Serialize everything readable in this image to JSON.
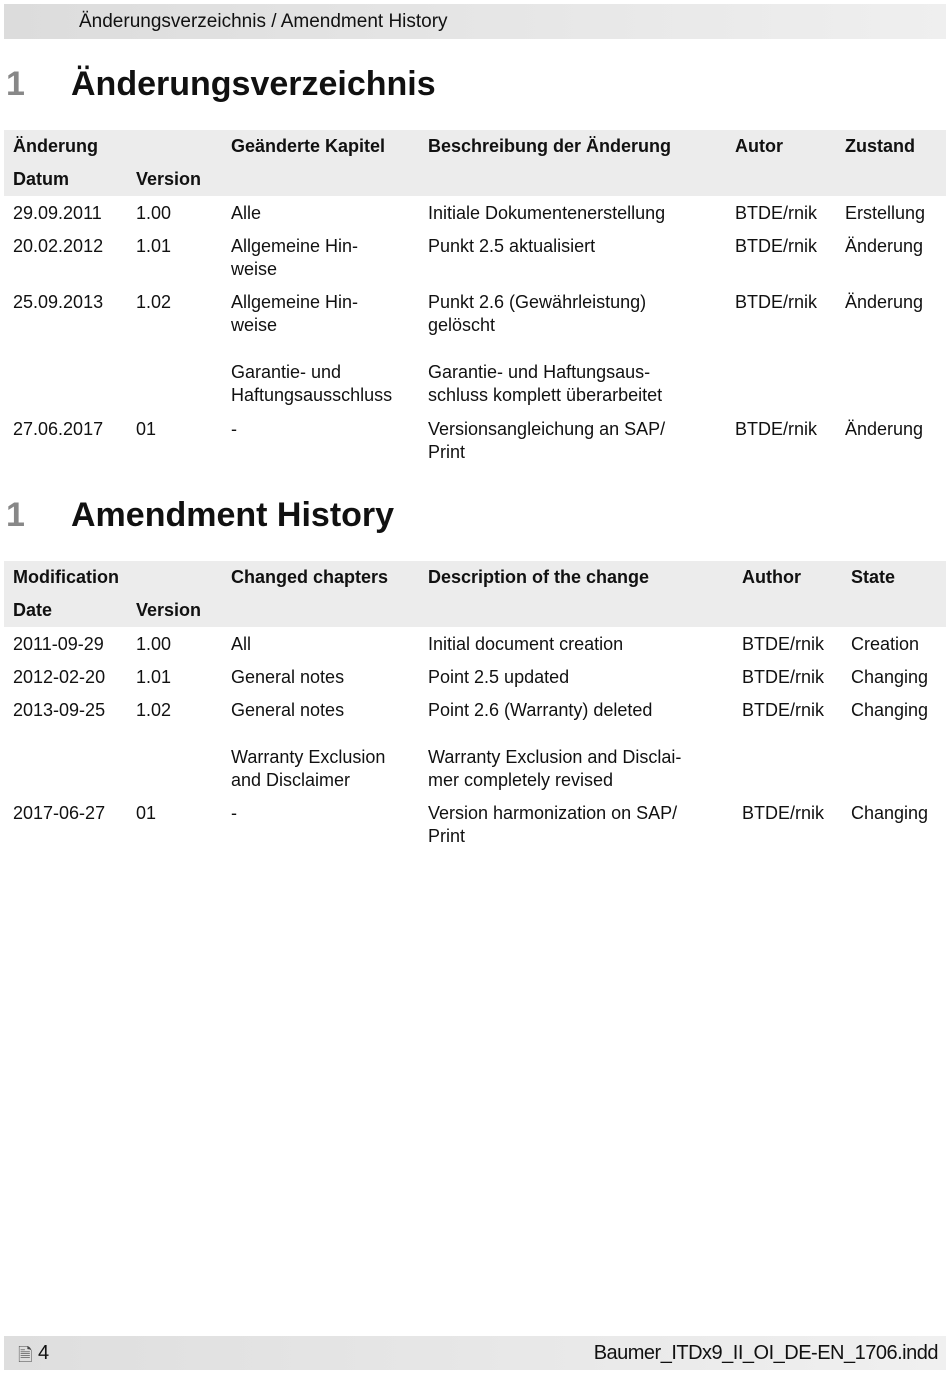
{
  "header": {
    "title": "Änderungsverzeichnis / Amendment History"
  },
  "de": {
    "heading_number": "1",
    "heading": "Änderungsverzeichnis",
    "columns": {
      "group": "Änderung",
      "date": "Datum",
      "version": "Version",
      "chapters": "Geänderte Kapitel",
      "description": "Beschreibung der Änderung",
      "author": "Autor",
      "state": "Zustand"
    },
    "rows": [
      {
        "date": "29.09.2011",
        "version": "1.00",
        "chapters": [
          "Alle"
        ],
        "description": [
          "Initiale Dokumentenerstellung"
        ],
        "author": "BTDE/rnik",
        "state": "Erstellung"
      },
      {
        "date": "20.02.2012",
        "version": "1.01",
        "chapters": [
          "Allgemeine Hin-",
          "weise"
        ],
        "description": [
          "Punkt 2.5 aktualisiert"
        ],
        "author": "BTDE/rnik",
        "state": "Änderung"
      },
      {
        "date": "25.09.2013",
        "version": "1.02",
        "chapters": [
          "Allgemeine Hin-",
          "weise"
        ],
        "description": [
          "Punkt 2.6 (Gewährleistung)",
          "gelöscht"
        ],
        "author": "BTDE/rnik",
        "state": "Änderung"
      },
      {
        "date": "",
        "version": "",
        "chapters": [
          "Garantie- und",
          "Haftungsausschluss"
        ],
        "description": [
          "Garantie- und Haftungsaus-",
          "schluss komplett überarbeitet"
        ],
        "author": "",
        "state": ""
      },
      {
        "date": "27.06.2017",
        "version": "01",
        "chapters": [
          "-"
        ],
        "description": [
          "Versionsangleichung an SAP/",
          "Print"
        ],
        "author": "BTDE/rnik",
        "state": "Änderung"
      }
    ]
  },
  "en": {
    "heading_number": "1",
    "heading": "Amendment History",
    "columns": {
      "group": "Modification",
      "date": "Date",
      "version": "Version",
      "chapters": "Changed chapters",
      "description": "Description of the change",
      "author": "Author",
      "state": "State"
    },
    "rows": [
      {
        "date": "2011-09-29",
        "version": "1.00",
        "chapters": [
          "All"
        ],
        "description": [
          "Initial document creation"
        ],
        "author": "BTDE/rnik",
        "state": "Creation"
      },
      {
        "date": "2012-02-20",
        "version": "1.01",
        "chapters": [
          "General notes"
        ],
        "description": [
          "Point 2.5 updated"
        ],
        "author": "BTDE/rnik",
        "state": "Changing"
      },
      {
        "date": "2013-09-25",
        "version": "1.02",
        "chapters": [
          "General notes"
        ],
        "description": [
          "Point 2.6 (Warranty) deleted"
        ],
        "author": "BTDE/rnik",
        "state": "Changing"
      },
      {
        "date": "",
        "version": "",
        "chapters": [
          "Warranty Exclusion",
          "and Disclaimer"
        ],
        "description": [
          "Warranty Exclusion and Disclai-",
          "mer completely revised"
        ],
        "author": "",
        "state": ""
      },
      {
        "date": "2017-06-27",
        "version": "01",
        "chapters": [
          "-"
        ],
        "description": [
          "Version harmonization on SAP/",
          "Print"
        ],
        "author": "BTDE/rnik",
        "state": "Changing"
      }
    ]
  },
  "footer": {
    "icon": "document-icon",
    "page": "4",
    "file": "Baumer_ITDx9_II_OI_DE-EN_1706.indd"
  }
}
